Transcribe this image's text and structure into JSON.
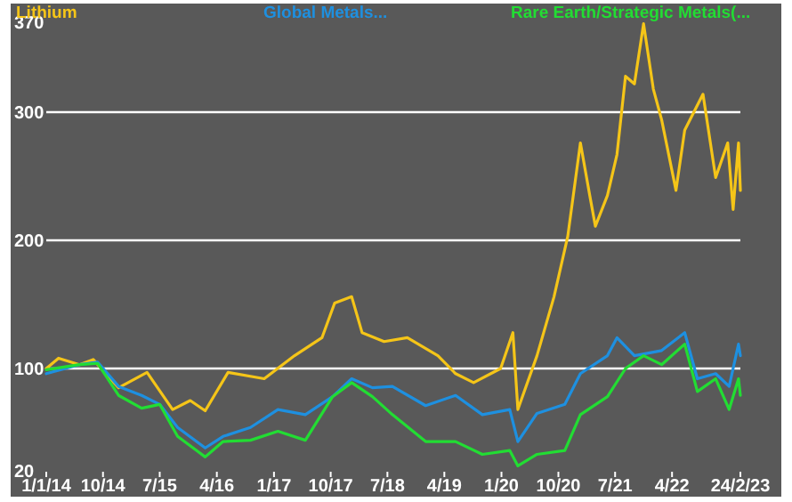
{
  "chart_data": {
    "type": "line",
    "xlim": [
      "2014-01-01",
      "2023-02-24"
    ],
    "xticks": [
      {
        "value": "2014-01-01",
        "label": "1/1/14"
      },
      {
        "value": "2014-10-01",
        "label": "10/14"
      },
      {
        "value": "2015-07-01",
        "label": "7/15"
      },
      {
        "value": "2016-04-01",
        "label": "4/16"
      },
      {
        "value": "2017-01-01",
        "label": "1/17"
      },
      {
        "value": "2017-10-01",
        "label": "10/17"
      },
      {
        "value": "2018-07-01",
        "label": "7/18"
      },
      {
        "value": "2019-04-01",
        "label": "4/19"
      },
      {
        "value": "2020-01-01",
        "label": "1/20"
      },
      {
        "value": "2020-10-01",
        "label": "10/20"
      },
      {
        "value": "2021-07-01",
        "label": "7/21"
      },
      {
        "value": "2022-04-01",
        "label": "4/22"
      },
      {
        "value": "2023-02-24",
        "label": "24/2/23"
      }
    ],
    "ylim": [
      20,
      370
    ],
    "yticks": [
      20,
      100,
      200,
      300,
      370
    ],
    "grid": "y",
    "legend": "top",
    "x": [
      "2014-01-01",
      "2014-03-01",
      "2014-06-10",
      "2014-08-15",
      "2014-12-15",
      "2015-05-01",
      "2015-09-01",
      "2015-11-25",
      "2016-02-05",
      "2016-05-25",
      "2016-11-15",
      "2017-04-10",
      "2017-08-20",
      "2017-10-20",
      "2018-01-10",
      "2018-03-01",
      "2018-06-15",
      "2018-10-05",
      "2019-03-01",
      "2019-05-25",
      "2019-08-20",
      "2019-12-28",
      "2020-02-25",
      "2020-03-20",
      "2020-06-20",
      "2020-09-10",
      "2020-11-15",
      "2021-01-15",
      "2021-03-01",
      "2021-03-28",
      "2021-05-25",
      "2021-07-10",
      "2021-08-20",
      "2021-10-02",
      "2021-11-15",
      "2022-01-01",
      "2022-02-10",
      "2022-04-20",
      "2022-06-01",
      "2022-08-28",
      "2022-10-28",
      "2022-12-25",
      "2023-01-20",
      "2023-02-15",
      "2023-02-24"
    ],
    "series": [
      {
        "name": "Lithium",
        "color": "#f5c518",
        "values": [
          100,
          108,
          103,
          107,
          85,
          97,
          68,
          75,
          67,
          97,
          92,
          110,
          124,
          151,
          156,
          128,
          121,
          124,
          110,
          96,
          89,
          100,
          128,
          68,
          110,
          156,
          203,
          276,
          235,
          211,
          235,
          267,
          328,
          322,
          369,
          318,
          294,
          239,
          286,
          314,
          249,
          276,
          224,
          276,
          239
        ]
      },
      {
        "name": "Global Metals...",
        "color": "#1e90e0",
        "x": [
          "2014-01-01",
          "2014-06-10",
          "2014-09-05",
          "2014-12-15",
          "2015-04-05",
          "2015-07-01",
          "2015-09-25",
          "2016-02-05",
          "2016-05-01",
          "2016-09-10",
          "2017-01-20",
          "2017-06-01",
          "2017-10-10",
          "2018-01-10",
          "2018-04-20",
          "2018-07-25",
          "2019-01-01",
          "2019-05-25",
          "2019-10-01",
          "2020-02-10",
          "2020-03-20",
          "2020-06-20",
          "2020-11-01",
          "2021-01-15",
          "2021-05-25",
          "2021-07-10",
          "2021-10-02",
          "2022-02-10",
          "2022-06-01",
          "2022-08-01",
          "2022-10-28",
          "2023-01-01",
          "2023-02-15",
          "2023-02-24"
        ],
        "values": [
          96,
          103,
          105,
          86,
          79,
          72,
          54,
          38,
          47,
          54,
          68,
          64,
          78,
          92,
          85,
          86,
          71,
          79,
          64,
          68,
          43,
          65,
          72,
          96,
          110,
          124,
          110,
          114,
          128,
          92,
          96,
          86,
          119,
          110
        ]
      },
      {
        "name": "Rare Earth/Strategic Metals(...",
        "color": "#22dd33",
        "x": [
          "2014-01-01",
          "2014-06-10",
          "2014-09-05",
          "2014-12-15",
          "2015-04-05",
          "2015-07-01",
          "2015-09-25",
          "2016-02-05",
          "2016-05-01",
          "2016-09-10",
          "2017-01-20",
          "2017-06-01",
          "2017-10-10",
          "2018-01-10",
          "2018-04-20",
          "2018-07-25",
          "2019-01-01",
          "2019-05-25",
          "2019-10-01",
          "2020-02-10",
          "2020-03-20",
          "2020-06-20",
          "2020-11-01",
          "2021-01-15",
          "2021-05-25",
          "2021-08-20",
          "2021-11-15",
          "2022-02-10",
          "2022-06-01",
          "2022-08-01",
          "2022-10-28",
          "2023-01-01",
          "2023-02-15",
          "2023-02-24"
        ],
        "values": [
          99,
          103,
          104,
          79,
          69,
          72,
          47,
          31,
          43,
          44,
          51,
          44,
          78,
          89,
          78,
          64,
          43,
          43,
          33,
          36,
          24,
          33,
          36,
          64,
          78,
          100,
          110,
          103,
          119,
          82,
          92,
          68,
          92,
          79
        ]
      }
    ]
  }
}
